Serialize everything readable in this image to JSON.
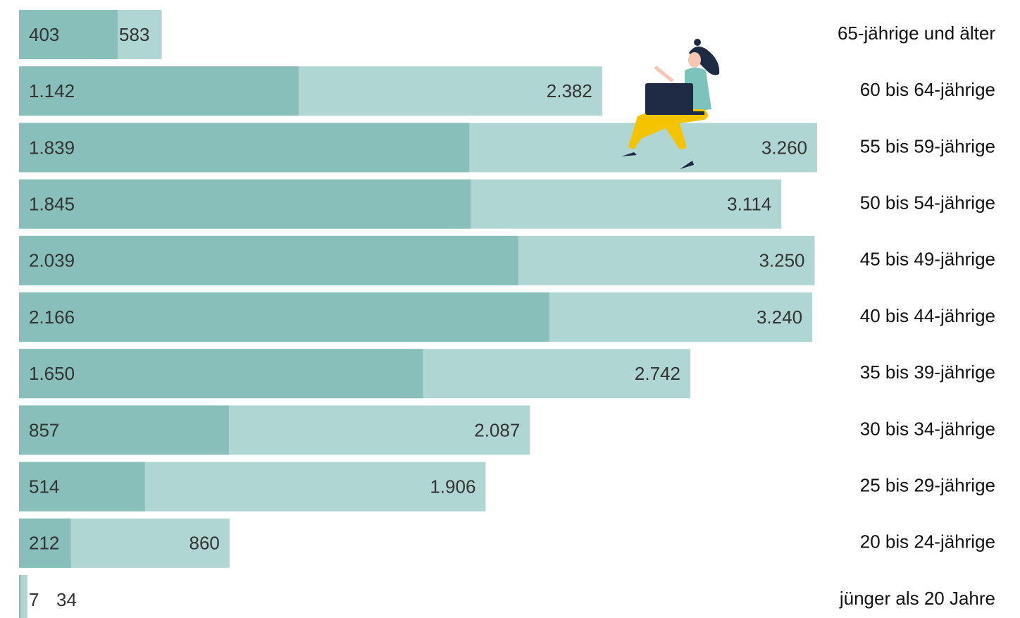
{
  "chart_data": {
    "type": "overlap-bar",
    "categories": [
      "65-jährige und älter",
      "60 bis 64-jährige",
      "55 bis 59-jährige",
      "50 bis 54-jährige",
      "45 bis 49-jährige",
      "40 bis 44-jährige",
      "35 bis 39-jährige",
      "30 bis 34-jährige",
      "25 bis 29-jährige",
      "20 bis 24-jährige",
      "jünger als 20 Jahre"
    ],
    "series": [
      {
        "color": "#b0d6d3",
        "values": [
          583,
          2382,
          3260,
          3114,
          3250,
          3240,
          2742,
          2087,
          1906,
          860,
          34
        ],
        "value_labels": [
          "583",
          "2.382",
          "3.260",
          "3.114",
          "3.250",
          "3.240",
          "2.742",
          "2.087",
          "1.906",
          "860",
          "34"
        ]
      },
      {
        "color": "#88bfba",
        "values": [
          403,
          1142,
          1839,
          1845,
          2039,
          2166,
          1650,
          857,
          514,
          212,
          7
        ],
        "value_labels": [
          "403",
          "1.142",
          "1.839",
          "1.845",
          "2.039",
          "2.166",
          "1.650",
          "857",
          "514",
          "212",
          "7"
        ]
      }
    ],
    "xlim": [
      0,
      3260
    ]
  }
}
